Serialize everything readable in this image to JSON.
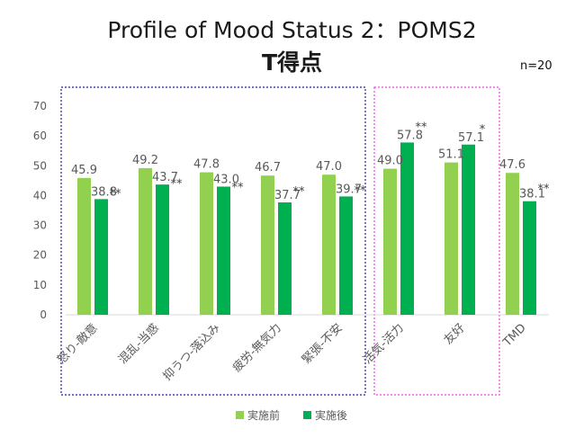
{
  "title": "Profile of Mood Status 2：POMS2",
  "subtitle": "T得点",
  "n_label": "n=20",
  "colors": {
    "before": "#92d050",
    "after": "#00b050",
    "negative_box": "#1f1fa0",
    "positive_box": "#ee44ee"
  },
  "chart_data": {
    "type": "bar",
    "title": "Profile of Mood Status 2：POMS2 T得点",
    "xlabel": "",
    "ylabel": "",
    "ylim": [
      0,
      70
    ],
    "yticks": [
      "0",
      "10",
      "20",
      "30",
      "40",
      "50",
      "60",
      "70"
    ],
    "grid": false,
    "legend_position": "bottom",
    "categories": [
      "怒り-敵意",
      "混乱-当惑",
      "抑うつ-落込み",
      "疲労-無気力",
      "緊張-不安",
      "活気-活力",
      "友好",
      "TMD"
    ],
    "series": [
      {
        "name": "実施前",
        "values": [
          45.9,
          49.2,
          47.8,
          46.7,
          47.0,
          49.0,
          51.1,
          47.6
        ],
        "labels": [
          "45.9",
          "49.2",
          "47.8",
          "46.7",
          "47.0",
          "49.0",
          "51.1",
          "47.6"
        ]
      },
      {
        "name": "実施後",
        "values": [
          38.8,
          43.7,
          43.0,
          37.7,
          39.7,
          57.8,
          57.1,
          38.1
        ],
        "labels": [
          "38.8",
          "43.7",
          "43.0",
          "37.7",
          "39.7",
          "57.8",
          "57.1",
          "38.1"
        ]
      }
    ],
    "significance": [
      "**",
      "**",
      "**",
      "**",
      "**",
      "**",
      "*",
      "**"
    ]
  }
}
